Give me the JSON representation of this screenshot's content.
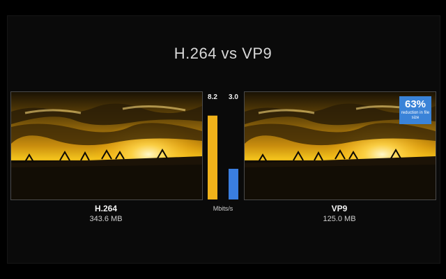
{
  "title": "H.264 vs VP9",
  "left": {
    "name": "H.264",
    "size": "343.6 MB"
  },
  "right": {
    "name": "VP9",
    "size": "125.0 MB",
    "badge": {
      "percent": "63%",
      "text": "reduction in file size"
    }
  },
  "chart_data": {
    "type": "bar",
    "categories": [
      "H.264",
      "VP9"
    ],
    "values": [
      8.2,
      3.0
    ],
    "value_labels": [
      "8.2",
      "3.0"
    ],
    "colors": [
      "#f0b21a",
      "#3a7ee0"
    ],
    "unit_label": "Mbits/s",
    "ylim": [
      0,
      9
    ],
    "title": "",
    "xlabel": "",
    "ylabel": ""
  }
}
